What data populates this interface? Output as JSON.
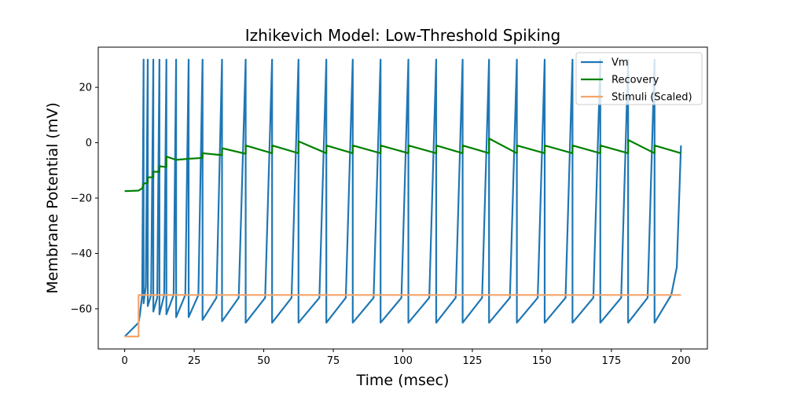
{
  "chart_data": {
    "type": "line",
    "title": "Izhikevich Model: Low-Threshold Spiking",
    "xlabel": "Time (msec)",
    "ylabel": "Membrane Potential (mV)",
    "xlim": [
      -9.5,
      209.5
    ],
    "ylim": [
      -74.5,
      34.5
    ],
    "xticks": [
      0,
      25,
      50,
      75,
      100,
      125,
      150,
      175,
      200
    ],
    "yticks": [
      -60,
      -40,
      -20,
      0,
      20
    ],
    "grid": false,
    "legend_position": "top-right",
    "spike_times": [
      6.8,
      8.3,
      10.3,
      12.5,
      15.0,
      18.5,
      23.0,
      28.0,
      35.0,
      43.5,
      53.0,
      62.5,
      72.5,
      82.0,
      92.0,
      102.0,
      112.0,
      121.5,
      131.0,
      141.0,
      151.0,
      161.0,
      171.0,
      181.0,
      190.5
    ],
    "spike_peak": 30,
    "series": [
      {
        "name": "Vm",
        "color": "#1f77b4",
        "points": [
          [
            0,
            -70
          ],
          [
            1,
            -69
          ],
          [
            2,
            -68
          ],
          [
            3,
            -67
          ],
          [
            4,
            -66
          ],
          [
            5,
            -65
          ],
          [
            5.5,
            -62
          ],
          [
            6.3,
            -55
          ],
          [
            6.8,
            30
          ],
          [
            6.8,
            -58
          ],
          [
            7.6,
            -52
          ],
          [
            8.3,
            30
          ],
          [
            8.3,
            -59
          ],
          [
            9.5,
            -55
          ],
          [
            10.3,
            30
          ],
          [
            10.3,
            -61
          ],
          [
            11.7,
            -56
          ],
          [
            12.5,
            30
          ],
          [
            12.5,
            -62
          ],
          [
            14.2,
            -55
          ],
          [
            15.0,
            30
          ],
          [
            15.0,
            -62
          ],
          [
            17.6,
            -55
          ],
          [
            18.5,
            30
          ],
          [
            18.5,
            -63
          ],
          [
            21.8,
            -55
          ],
          [
            23.0,
            30
          ],
          [
            23.0,
            -63
          ],
          [
            26.5,
            -55
          ],
          [
            28.0,
            30
          ],
          [
            28.0,
            -64
          ],
          [
            33.0,
            -56
          ],
          [
            35.0,
            30
          ],
          [
            35.0,
            -64.5
          ],
          [
            41.0,
            -56
          ],
          [
            43.5,
            30
          ],
          [
            43.5,
            -65
          ],
          [
            50.5,
            -56
          ],
          [
            53.0,
            30
          ],
          [
            53.0,
            -65
          ],
          [
            60.0,
            -56
          ],
          [
            62.5,
            30
          ],
          [
            62.5,
            -65
          ],
          [
            70.0,
            -56
          ],
          [
            72.5,
            30
          ],
          [
            72.5,
            -65
          ],
          [
            79.5,
            -56
          ],
          [
            82.0,
            30
          ],
          [
            82.0,
            -65
          ],
          [
            89.5,
            -56
          ],
          [
            92.0,
            30
          ],
          [
            92.0,
            -65
          ],
          [
            99.5,
            -56
          ],
          [
            102.0,
            30
          ],
          [
            102.0,
            -65
          ],
          [
            109.5,
            -56
          ],
          [
            112.0,
            30
          ],
          [
            112.0,
            -65
          ],
          [
            119.0,
            -56
          ],
          [
            121.5,
            30
          ],
          [
            121.5,
            -65
          ],
          [
            128.5,
            -56
          ],
          [
            131.0,
            30
          ],
          [
            131.0,
            -65
          ],
          [
            138.5,
            -56
          ],
          [
            141.0,
            30
          ],
          [
            141.0,
            -65
          ],
          [
            148.5,
            -56
          ],
          [
            151.0,
            30
          ],
          [
            151.0,
            -65
          ],
          [
            158.5,
            -56
          ],
          [
            161.0,
            30
          ],
          [
            161.0,
            -65
          ],
          [
            168.5,
            -56
          ],
          [
            171.0,
            30
          ],
          [
            171.0,
            -65
          ],
          [
            178.5,
            -56
          ],
          [
            181.0,
            30
          ],
          [
            181.0,
            -65
          ],
          [
            188.0,
            -56
          ],
          [
            190.5,
            30
          ],
          [
            190.5,
            -65
          ],
          [
            196.5,
            -55
          ],
          [
            198.5,
            -45
          ],
          [
            200,
            -1
          ]
        ]
      },
      {
        "name": "Recovery",
        "color": "#008000",
        "points": [
          [
            0,
            -17.5
          ],
          [
            5,
            -17.3
          ],
          [
            6.3,
            -16.5
          ],
          [
            6.8,
            -14.8
          ],
          [
            8.3,
            -14.5
          ],
          [
            8.3,
            -12.5
          ],
          [
            10.3,
            -12.5
          ],
          [
            10.3,
            -10.5
          ],
          [
            12.5,
            -10.5
          ],
          [
            12.5,
            -8.5
          ],
          [
            15.0,
            -8.8
          ],
          [
            15.0,
            -5.0
          ],
          [
            18.5,
            -6.2
          ],
          [
            23.0,
            -5.8
          ],
          [
            28.0,
            -5.5
          ],
          [
            28.0,
            -3.8
          ],
          [
            35.0,
            -4.5
          ],
          [
            35.0,
            -2.0
          ],
          [
            43.5,
            -4.0
          ],
          [
            43.5,
            -1.0
          ],
          [
            53.0,
            -3.8
          ],
          [
            53.0,
            -1.0
          ],
          [
            62.5,
            -3.8
          ],
          [
            62.5,
            0.5
          ],
          [
            72.5,
            -3.8
          ],
          [
            72.5,
            -1.0
          ],
          [
            82.0,
            -3.8
          ],
          [
            82.0,
            -1.0
          ],
          [
            92.0,
            -3.8
          ],
          [
            92.0,
            -1.0
          ],
          [
            102.0,
            -3.8
          ],
          [
            102.0,
            -1.0
          ],
          [
            112.0,
            -3.8
          ],
          [
            112.0,
            -1.0
          ],
          [
            121.5,
            -3.8
          ],
          [
            121.5,
            -1.0
          ],
          [
            131.0,
            -3.8
          ],
          [
            131.0,
            1.5
          ],
          [
            141.0,
            -3.8
          ],
          [
            141.0,
            -1.0
          ],
          [
            151.0,
            -3.8
          ],
          [
            151.0,
            -1.0
          ],
          [
            161.0,
            -3.8
          ],
          [
            161.0,
            -1.0
          ],
          [
            171.0,
            -3.8
          ],
          [
            171.0,
            -1.0
          ],
          [
            181.0,
            -3.8
          ],
          [
            181.0,
            1.0
          ],
          [
            190.5,
            -3.8
          ],
          [
            190.5,
            -1.0
          ],
          [
            200,
            -3.8
          ]
        ]
      },
      {
        "name": "Stimuli (Scaled)",
        "color": "#f4a46c",
        "points": [
          [
            0,
            -70
          ],
          [
            5,
            -70
          ],
          [
            5,
            -55
          ],
          [
            200,
            -55
          ]
        ]
      }
    ]
  }
}
